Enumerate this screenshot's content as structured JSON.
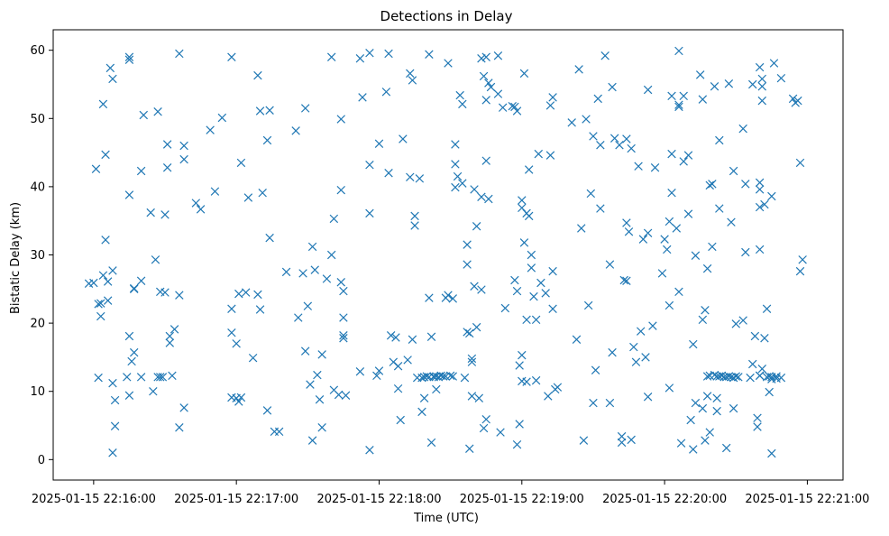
{
  "chart_data": {
    "type": "scatter",
    "title": "Detections in Delay",
    "xlabel": "Time (UTC)",
    "ylabel": "Bistatic Delay (km)",
    "marker": "x",
    "marker_color": "#1f77b4",
    "grid": false,
    "x_unit": "seconds after 22:16:00",
    "xlim": [
      -17,
      315
    ],
    "ylim": [
      -3,
      63
    ],
    "x_ticks": [
      {
        "value": 0,
        "label": "2025-01-15 22:16:00"
      },
      {
        "value": 60,
        "label": "2025-01-15 22:17:00"
      },
      {
        "value": 120,
        "label": "2025-01-15 22:18:00"
      },
      {
        "value": 180,
        "label": "2025-01-15 22:19:00"
      },
      {
        "value": 240,
        "label": "2025-01-15 22:20:00"
      },
      {
        "value": 300,
        "label": "2025-01-15 22:21:00"
      }
    ],
    "y_ticks": [
      {
        "value": 0,
        "label": "0"
      },
      {
        "value": 10,
        "label": "10"
      },
      {
        "value": 20,
        "label": "20"
      },
      {
        "value": 30,
        "label": "30"
      },
      {
        "value": 40,
        "label": "40"
      },
      {
        "value": 50,
        "label": "50"
      },
      {
        "value": 60,
        "label": "60"
      }
    ],
    "points": [
      [
        -2,
        25.8
      ],
      [
        0,
        25.9
      ],
      [
        1,
        42.6
      ],
      [
        2,
        22.8
      ],
      [
        2,
        12
      ],
      [
        3,
        21
      ],
      [
        3,
        22.9
      ],
      [
        4,
        27
      ],
      [
        4,
        52.1
      ],
      [
        5,
        44.7
      ],
      [
        5,
        32.2
      ],
      [
        6,
        23.3
      ],
      [
        6,
        26.1
      ],
      [
        7,
        57.4
      ],
      [
        8,
        55.8
      ],
      [
        8,
        27.7
      ],
      [
        8,
        1
      ],
      [
        8,
        11.2
      ],
      [
        9,
        8.7
      ],
      [
        9,
        4.9
      ],
      [
        15,
        59
      ],
      [
        15,
        58.6
      ],
      [
        15,
        38.8
      ],
      [
        15,
        18.1
      ],
      [
        15,
        9.4
      ],
      [
        14,
        12.1
      ],
      [
        16,
        14.4
      ],
      [
        17,
        25
      ],
      [
        17,
        25.1
      ],
      [
        17,
        15.7
      ],
      [
        20,
        42.3
      ],
      [
        20,
        26.2
      ],
      [
        20,
        12.1
      ],
      [
        21,
        50.5
      ],
      [
        24,
        36.2
      ],
      [
        25,
        10
      ],
      [
        26,
        29.3
      ],
      [
        27,
        12.1
      ],
      [
        28,
        12.1
      ],
      [
        27,
        51
      ],
      [
        28,
        24.6
      ],
      [
        29,
        12.1
      ],
      [
        30,
        24.5
      ],
      [
        30,
        35.9
      ],
      [
        31,
        42.8
      ],
      [
        31,
        46.2
      ],
      [
        32,
        18.1
      ],
      [
        32,
        17.1
      ],
      [
        33,
        12.3
      ],
      [
        34,
        19.1
      ],
      [
        36,
        24.1
      ],
      [
        36,
        4.7
      ],
      [
        36,
        59.5
      ],
      [
        38,
        44
      ],
      [
        38,
        46
      ],
      [
        38,
        7.6
      ],
      [
        43,
        37.6
      ],
      [
        45,
        36.7
      ],
      [
        49,
        48.3
      ],
      [
        51,
        39.3
      ],
      [
        54,
        50.1
      ],
      [
        58,
        59
      ],
      [
        58,
        22.1
      ],
      [
        58,
        18.6
      ],
      [
        58,
        9.1
      ],
      [
        60,
        17
      ],
      [
        60,
        9
      ],
      [
        61,
        8.5
      ],
      [
        61,
        24.3
      ],
      [
        62,
        43.5
      ],
      [
        62,
        9.1
      ],
      [
        64,
        24.5
      ],
      [
        65,
        38.4
      ],
      [
        67,
        14.9
      ],
      [
        69,
        56.3
      ],
      [
        69,
        24.2
      ],
      [
        70,
        22
      ],
      [
        70,
        51.1
      ],
      [
        71,
        39.1
      ],
      [
        73,
        46.8
      ],
      [
        74,
        51.2
      ],
      [
        74,
        32.5
      ],
      [
        73,
        7.2
      ],
      [
        76,
        4.1
      ],
      [
        78,
        4.1
      ],
      [
        81,
        27.5
      ],
      [
        85,
        48.2
      ],
      [
        86,
        20.8
      ],
      [
        88,
        27.3
      ],
      [
        89,
        51.5
      ],
      [
        89,
        15.9
      ],
      [
        90,
        22.5
      ],
      [
        91,
        11
      ],
      [
        92,
        31.2
      ],
      [
        92,
        2.8
      ],
      [
        93,
        27.8
      ],
      [
        94,
        12.4
      ],
      [
        95,
        8.8
      ],
      [
        96,
        15.4
      ],
      [
        96,
        4.7
      ],
      [
        98,
        26.5
      ],
      [
        100,
        30
      ],
      [
        100,
        59
      ],
      [
        101,
        35.3
      ],
      [
        101,
        10.2
      ],
      [
        103,
        9.5
      ],
      [
        104,
        26
      ],
      [
        104,
        49.9
      ],
      [
        104,
        39.5
      ],
      [
        105,
        24.7
      ],
      [
        105,
        20.8
      ],
      [
        105,
        17.8
      ],
      [
        105,
        18.2
      ],
      [
        106,
        9.4
      ],
      [
        112,
        12.9
      ],
      [
        113,
        53.1
      ],
      [
        112,
        58.8
      ],
      [
        116,
        59.6
      ],
      [
        116,
        43.2
      ],
      [
        116,
        36.1
      ],
      [
        116,
        1.4
      ],
      [
        119,
        12.3
      ],
      [
        120,
        46.3
      ],
      [
        120,
        13
      ],
      [
        123,
        53.9
      ],
      [
        124,
        59.5
      ],
      [
        124,
        42
      ],
      [
        125,
        18.2
      ],
      [
        126,
        14.3
      ],
      [
        127,
        17.9
      ],
      [
        128,
        10.4
      ],
      [
        128,
        13.7
      ],
      [
        129,
        5.8
      ],
      [
        130,
        47
      ],
      [
        132,
        14.6
      ],
      [
        133,
        56.6
      ],
      [
        133,
        41.4
      ],
      [
        134,
        55.6
      ],
      [
        134,
        17.6
      ],
      [
        135,
        35.7
      ],
      [
        135,
        34.3
      ],
      [
        136,
        12
      ],
      [
        137,
        41.2
      ],
      [
        138,
        7
      ],
      [
        138,
        12
      ],
      [
        139,
        12.1
      ],
      [
        139,
        9
      ],
      [
        140,
        12.2
      ],
      [
        141,
        12.1
      ],
      [
        141,
        59.4
      ],
      [
        141,
        23.7
      ],
      [
        142,
        18
      ],
      [
        142,
        2.5
      ],
      [
        143,
        12.2
      ],
      [
        143,
        12.1
      ],
      [
        144,
        10.3
      ],
      [
        144,
        12.2
      ],
      [
        145,
        12.1
      ],
      [
        146,
        12.3
      ],
      [
        147,
        12.2
      ],
      [
        148,
        12.2
      ],
      [
        148,
        23.7
      ],
      [
        149,
        58.1
      ],
      [
        149,
        24.1
      ],
      [
        150,
        12.3
      ],
      [
        151,
        12.2
      ],
      [
        151,
        23.6
      ],
      [
        152,
        46.2
      ],
      [
        152,
        43.3
      ],
      [
        152,
        39.9
      ],
      [
        153,
        41.5
      ],
      [
        154,
        53.4
      ],
      [
        155,
        52.1
      ],
      [
        155,
        40.5
      ],
      [
        156,
        12
      ],
      [
        157,
        28.6
      ],
      [
        157,
        31.5
      ],
      [
        157,
        18.7
      ],
      [
        158,
        1.6
      ],
      [
        158,
        18.5
      ],
      [
        159,
        14.8
      ],
      [
        159,
        14.3
      ],
      [
        159,
        9.3
      ],
      [
        160,
        39.6
      ],
      [
        160,
        25.4
      ],
      [
        161,
        34.2
      ],
      [
        161,
        19.4
      ],
      [
        162,
        9
      ],
      [
        163,
        58.8
      ],
      [
        163,
        38.5
      ],
      [
        163,
        24.9
      ],
      [
        164,
        56.2
      ],
      [
        164,
        4.6
      ],
      [
        165,
        52.7
      ],
      [
        165,
        59
      ],
      [
        165,
        43.8
      ],
      [
        165,
        5.9
      ],
      [
        166,
        55.2
      ],
      [
        166,
        38.2
      ],
      [
        167,
        54.6
      ],
      [
        170,
        59.2
      ],
      [
        170,
        53.6
      ],
      [
        171,
        4
      ],
      [
        172,
        51.6
      ],
      [
        173,
        22.2
      ],
      [
        176,
        51.8
      ],
      [
        177,
        51.7
      ],
      [
        177,
        26.3
      ],
      [
        178,
        51.1
      ],
      [
        178,
        24.7
      ],
      [
        178,
        2.2
      ],
      [
        179,
        13.8
      ],
      [
        179,
        5.2
      ],
      [
        180,
        38
      ],
      [
        180,
        36.9
      ],
      [
        180,
        15.3
      ],
      [
        180,
        11.5
      ],
      [
        181,
        56.6
      ],
      [
        181,
        31.8
      ],
      [
        182,
        36.1
      ],
      [
        182,
        20.5
      ],
      [
        182,
        11.4
      ],
      [
        183,
        42.5
      ],
      [
        183,
        35.7
      ],
      [
        184,
        30
      ],
      [
        184,
        28.1
      ],
      [
        185,
        23.9
      ],
      [
        186,
        20.5
      ],
      [
        186,
        11.6
      ],
      [
        187,
        44.8
      ],
      [
        188,
        25.9
      ],
      [
        190,
        24.4
      ],
      [
        191,
        9.3
      ],
      [
        192,
        51.9
      ],
      [
        192,
        44.6
      ],
      [
        193,
        53.1
      ],
      [
        193,
        27.6
      ],
      [
        193,
        22.1
      ],
      [
        194,
        10.3
      ],
      [
        195,
        10.6
      ],
      [
        201,
        49.4
      ],
      [
        203,
        17.6
      ],
      [
        204,
        57.2
      ],
      [
        205,
        33.9
      ],
      [
        206,
        2.8
      ],
      [
        207,
        49.9
      ],
      [
        208,
        22.6
      ],
      [
        209,
        39
      ],
      [
        210,
        47.4
      ],
      [
        210,
        8.3
      ],
      [
        211,
        13.1
      ],
      [
        212,
        52.9
      ],
      [
        213,
        46.1
      ],
      [
        213,
        36.8
      ],
      [
        215,
        59.2
      ],
      [
        217,
        28.6
      ],
      [
        217,
        8.3
      ],
      [
        218,
        54.6
      ],
      [
        218,
        15.7
      ],
      [
        219,
        47.1
      ],
      [
        221,
        46.1
      ],
      [
        222,
        2.5
      ],
      [
        222,
        3.4
      ],
      [
        223,
        26.3
      ],
      [
        224,
        26.2
      ],
      [
        224,
        34.7
      ],
      [
        224,
        47
      ],
      [
        225,
        33.4
      ],
      [
        226,
        45.6
      ],
      [
        226,
        2.9
      ],
      [
        227,
        16.5
      ],
      [
        228,
        14.3
      ],
      [
        229,
        43
      ],
      [
        230,
        18.8
      ],
      [
        231,
        32.3
      ],
      [
        232,
        15
      ],
      [
        233,
        33.2
      ],
      [
        233,
        9.2
      ],
      [
        233,
        54.2
      ],
      [
        235,
        19.6
      ],
      [
        236,
        42.8
      ],
      [
        239,
        27.3
      ],
      [
        240,
        32.3
      ],
      [
        241,
        30.8
      ],
      [
        242,
        34.9
      ],
      [
        242,
        22.6
      ],
      [
        242,
        10.5
      ],
      [
        243,
        53.3
      ],
      [
        243,
        39.1
      ],
      [
        243,
        44.8
      ],
      [
        245,
        33.9
      ],
      [
        246,
        24.6
      ],
      [
        246,
        52
      ],
      [
        246,
        51.7
      ],
      [
        246,
        59.9
      ],
      [
        247,
        2.4
      ],
      [
        248,
        43.7
      ],
      [
        248,
        53.3
      ],
      [
        250,
        44.6
      ],
      [
        250,
        36
      ],
      [
        251,
        5.8
      ],
      [
        252,
        1.5
      ],
      [
        252,
        16.9
      ],
      [
        253,
        8.3
      ],
      [
        253,
        29.9
      ],
      [
        255,
        56.4
      ],
      [
        256,
        52.8
      ],
      [
        256,
        20.5
      ],
      [
        256,
        7.5
      ],
      [
        257,
        21.9
      ],
      [
        257,
        2.8
      ],
      [
        258,
        12.2
      ],
      [
        258,
        9.3
      ],
      [
        258,
        28
      ],
      [
        259,
        12.3
      ],
      [
        259,
        4
      ],
      [
        259,
        40.2
      ],
      [
        260,
        40.4
      ],
      [
        260,
        31.2
      ],
      [
        261,
        12.4
      ],
      [
        261,
        54.7
      ],
      [
        262,
        12.2
      ],
      [
        262,
        9
      ],
      [
        262,
        7.1
      ],
      [
        263,
        12.2
      ],
      [
        263,
        36.8
      ],
      [
        263,
        46.8
      ],
      [
        264,
        12.3
      ],
      [
        265,
        12.1
      ],
      [
        266,
        12.1
      ],
      [
        266,
        1.7
      ],
      [
        267,
        12.2
      ],
      [
        267,
        55.1
      ],
      [
        268,
        12.1
      ],
      [
        268,
        34.8
      ],
      [
        269,
        12
      ],
      [
        269,
        7.5
      ],
      [
        269,
        42.3
      ],
      [
        270,
        12.2
      ],
      [
        270,
        19.9
      ],
      [
        271,
        12.1
      ],
      [
        273,
        48.5
      ],
      [
        273,
        20.4
      ],
      [
        274,
        40.4
      ],
      [
        274,
        30.4
      ],
      [
        276,
        12
      ],
      [
        277,
        55
      ],
      [
        277,
        14
      ],
      [
        278,
        18.1
      ],
      [
        279,
        6.1
      ],
      [
        279,
        4.8
      ],
      [
        280,
        40.6
      ],
      [
        280,
        39.6
      ],
      [
        280,
        57.5
      ],
      [
        280,
        37
      ],
      [
        280,
        12.3
      ],
      [
        280,
        12.3
      ],
      [
        280,
        30.8
      ],
      [
        281,
        13.3
      ],
      [
        281,
        55.8
      ],
      [
        281,
        54.7
      ],
      [
        281,
        52.6
      ],
      [
        282,
        37.4
      ],
      [
        282,
        17.8
      ],
      [
        283,
        12.1
      ],
      [
        283,
        22.1
      ],
      [
        284,
        9.9
      ],
      [
        284,
        12.2
      ],
      [
        285,
        11.8
      ],
      [
        285,
        12.1
      ],
      [
        285,
        38.6
      ],
      [
        285,
        0.9
      ],
      [
        286,
        58.1
      ],
      [
        287,
        12.2
      ],
      [
        287,
        11.9
      ],
      [
        289,
        12
      ],
      [
        289,
        55.9
      ],
      [
        294,
        52.9
      ],
      [
        295,
        52.3
      ],
      [
        296,
        52.6
      ],
      [
        297,
        27.6
      ],
      [
        297,
        43.5
      ],
      [
        298,
        29.3
      ]
    ]
  }
}
